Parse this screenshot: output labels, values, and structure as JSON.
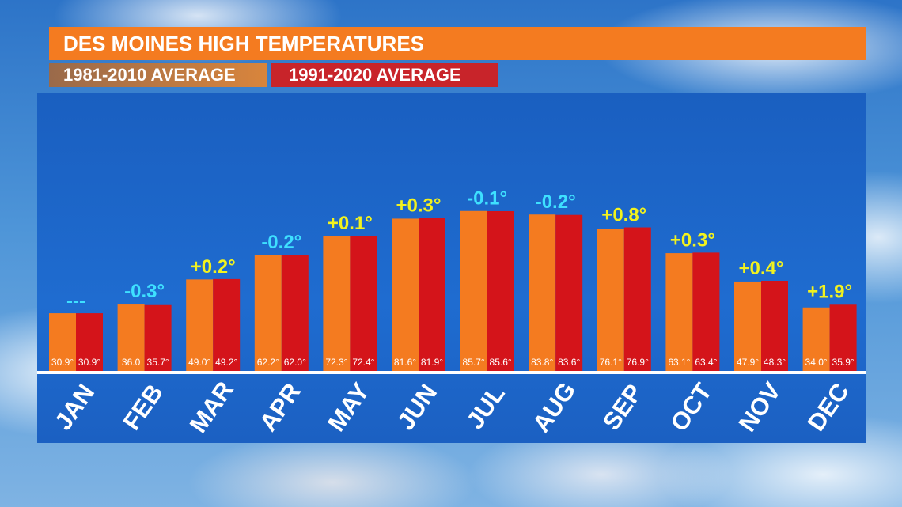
{
  "title": "DES MOINES HIGH TEMPERATURES",
  "legend": {
    "series_a": "1981-2010 AVERAGE",
    "series_b": "1991-2020 AVERAGE"
  },
  "colors": {
    "title_bg": "#f47b20",
    "series_a": "#f47b20",
    "series_b": "#d4141a",
    "panel": "#1f6cd0",
    "diff_negative": "#3ee0ff",
    "diff_positive": "#f2f21e"
  },
  "chart_data": {
    "type": "bar",
    "title": "DES MOINES HIGH TEMPERATURES",
    "categories": [
      "JAN",
      "FEB",
      "MAR",
      "APR",
      "MAY",
      "JUN",
      "JUL",
      "AUG",
      "SEP",
      "OCT",
      "NOV",
      "DEC"
    ],
    "series": [
      {
        "name": "1981-2010 AVERAGE",
        "values": [
          30.9,
          36.0,
          49.0,
          62.2,
          72.3,
          81.6,
          85.7,
          83.8,
          76.1,
          63.1,
          47.9,
          34.0
        ],
        "labels": [
          "30.9°",
          "36.0",
          "49.0°",
          "62.2°",
          "72.3°",
          "81.6°",
          "85.7°",
          "83.8°",
          "76.1°",
          "63.1°",
          "47.9°",
          "34.0°"
        ]
      },
      {
        "name": "1991-2020 AVERAGE",
        "values": [
          30.9,
          35.7,
          49.2,
          62.0,
          72.4,
          81.9,
          85.6,
          83.6,
          76.9,
          63.4,
          48.3,
          35.9
        ],
        "labels": [
          "30.9°",
          "35.7°",
          "49.2°",
          "62.0°",
          "72.4°",
          "81.9°",
          "85.6°",
          "83.6°",
          "76.9°",
          "63.4°",
          "48.3°",
          "35.9°"
        ]
      }
    ],
    "differences": [
      "---",
      "-0.3°",
      "+0.2°",
      "-0.2°",
      "+0.1°",
      "+0.3°",
      "-0.1°",
      "-0.2°",
      "+0.8°",
      "+0.3°",
      "+0.4°",
      "+1.9°"
    ],
    "grid": false,
    "legend_position": "top-left"
  }
}
